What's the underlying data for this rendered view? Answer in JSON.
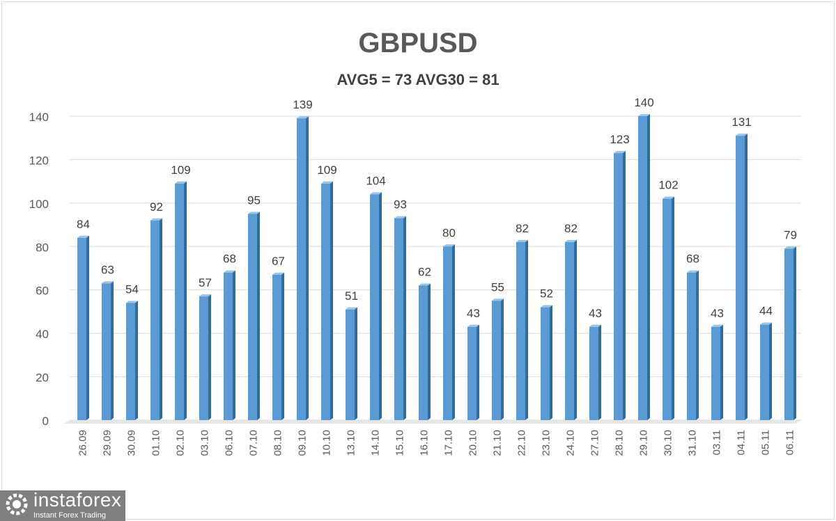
{
  "chart_data": {
    "type": "bar",
    "title": "GBPUSD",
    "subtitle": "AVG5 = 73 AVG30 = 81",
    "categories": [
      "26.09",
      "29.09",
      "30.09",
      "01.10",
      "02.10",
      "03.10",
      "06.10",
      "07.10",
      "08.10",
      "09.10",
      "10.10",
      "13.10",
      "14.10",
      "15.10",
      "16.10",
      "17.10",
      "20.10",
      "21.10",
      "22.10",
      "23.10",
      "24.10",
      "27.10",
      "28.10",
      "29.10",
      "30.10",
      "31.10",
      "03.11",
      "04.11",
      "05.11",
      "06.11"
    ],
    "values": [
      84,
      63,
      54,
      92,
      109,
      57,
      68,
      95,
      67,
      139,
      109,
      51,
      104,
      93,
      62,
      80,
      43,
      55,
      82,
      52,
      82,
      43,
      123,
      140,
      102,
      68,
      43,
      131,
      44,
      79
    ],
    "ylim": [
      0,
      140
    ],
    "yticks": [
      0,
      20,
      40,
      60,
      80,
      100,
      120,
      140
    ],
    "grid": true,
    "xlabel": "",
    "ylabel": "",
    "colors": {
      "bar": "#5b9bd5",
      "bar_side": "#2e6da4",
      "grid": "#d9d9d9"
    }
  },
  "logo": {
    "name": "instaforex",
    "tagline": "Instant Forex Trading"
  }
}
